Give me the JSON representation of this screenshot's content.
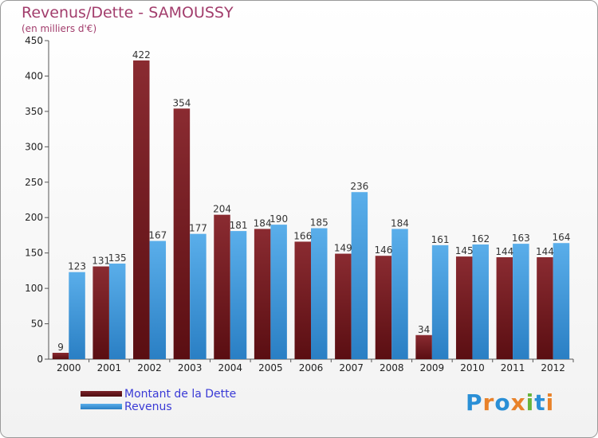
{
  "header": {
    "title": "Revenus/Dette - SAMOUSSY",
    "subtitle": "(en milliers d'€)"
  },
  "chart_data": {
    "type": "bar",
    "categories": [
      "2000",
      "2001",
      "2002",
      "2003",
      "2004",
      "2005",
      "2006",
      "2007",
      "2008",
      "2009",
      "2010",
      "2011",
      "2012"
    ],
    "series": [
      {
        "name": "Montant de la Dette",
        "color": "#6e1a1f",
        "values": [
          9,
          131,
          422,
          354,
          204,
          184,
          166,
          149,
          146,
          34,
          145,
          144,
          144
        ]
      },
      {
        "name": "Revenus",
        "color": "#3c9be0",
        "values": [
          123,
          135,
          167,
          177,
          181,
          190,
          185,
          236,
          184,
          161,
          162,
          163,
          164
        ]
      }
    ],
    "ylim": [
      0,
      450
    ],
    "yticks": [
      0,
      50,
      100,
      150,
      200,
      250,
      300,
      350,
      400,
      450
    ],
    "grid": false,
    "legend_position": "bottom-left"
  },
  "legend": {
    "items": [
      {
        "label": "Montant de la Dette",
        "color": "#6e1a1f"
      },
      {
        "label": "Revenus",
        "color": "#3c9be0"
      }
    ]
  },
  "logo": {
    "letters": [
      {
        "ch": "P",
        "color": "#2a8fd6"
      },
      {
        "ch": "r",
        "color": "#e8822a"
      },
      {
        "ch": "o",
        "color": "#2a8fd6"
      },
      {
        "ch": "x",
        "color": "#e8822a"
      },
      {
        "ch": "i",
        "color": "#68b43a"
      },
      {
        "ch": "t",
        "color": "#2a8fd6"
      },
      {
        "ch": "i",
        "color": "#e8822a"
      }
    ]
  }
}
